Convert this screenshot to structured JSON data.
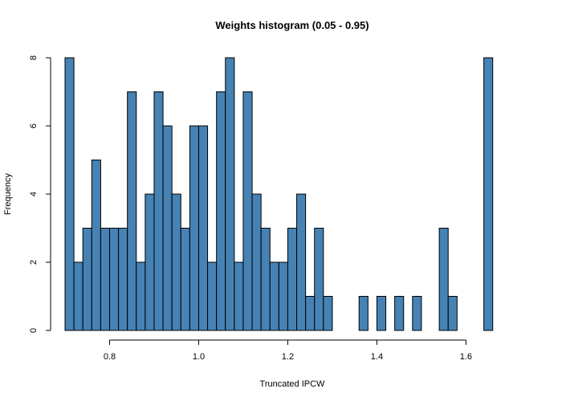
{
  "chart_data": {
    "type": "bar",
    "title": "Weights histogram (0.05 - 0.95)",
    "xlabel": "Truncated IPCW",
    "ylabel": "Frequency",
    "bar_color": "#4682B4",
    "xlim": [
      0.7,
      1.72
    ],
    "ylim": [
      0,
      8
    ],
    "bin_start": 0.7,
    "bin_width": 0.02,
    "x_ticks": [
      "0.8",
      "1.0",
      "1.2",
      "1.4",
      "1.6"
    ],
    "x_tick_values": [
      0.8,
      1.0,
      1.2,
      1.4,
      1.6
    ],
    "y_ticks": [
      "0",
      "2",
      "4",
      "6",
      "8"
    ],
    "y_tick_values": [
      0,
      2,
      4,
      6,
      8
    ],
    "values": [
      8,
      2,
      3,
      5,
      3,
      3,
      3,
      7,
      2,
      4,
      7,
      6,
      4,
      3,
      6,
      6,
      2,
      7,
      8,
      2,
      7,
      4,
      3,
      2,
      2,
      3,
      4,
      1,
      3,
      1,
      0,
      0,
      0,
      1,
      0,
      1,
      0,
      1,
      0,
      1,
      0,
      0,
      3,
      1,
      0,
      0,
      0,
      8
    ]
  }
}
